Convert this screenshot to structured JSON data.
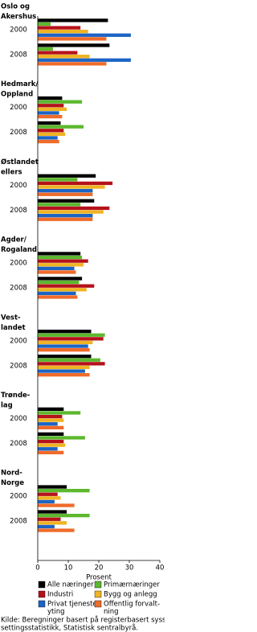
{
  "chart_data": {
    "type": "bar",
    "orientation": "horizontal",
    "groups": [
      {
        "label": [
          "Oslo og",
          "Akershus"
        ],
        "categories": [
          "2000",
          "2008"
        ]
      },
      {
        "label": [
          "Hedmark/",
          "Oppland"
        ],
        "categories": [
          "2000",
          "2008"
        ]
      },
      {
        "label": [
          "Østlandet",
          "ellers"
        ],
        "categories": [
          "2000",
          "2008"
        ]
      },
      {
        "label": [
          "Agder/",
          "Rogaland"
        ],
        "categories": [
          "2000",
          "2008"
        ]
      },
      {
        "label": [
          "Vest-",
          "landet"
        ],
        "categories": [
          "2000",
          "2008"
        ]
      },
      {
        "label": [
          "Trønde-",
          "lag"
        ],
        "categories": [
          "2000",
          "2008"
        ]
      },
      {
        "label": [
          "Nord-",
          "Norge"
        ],
        "categories": [
          "2000",
          "2008"
        ]
      }
    ],
    "series": [
      {
        "name": [
          "Alle næringer"
        ],
        "color": "#000000",
        "values": [
          23,
          23.5,
          8,
          7.5,
          19,
          18.5,
          14,
          14.5,
          17.5,
          17.5,
          8.5,
          8.5,
          9.5,
          9.5
        ]
      },
      {
        "name": [
          "Primærnæringer"
        ],
        "color": "#5cb82e",
        "values": [
          4.2,
          5,
          14.5,
          15,
          13,
          14,
          14.5,
          13.5,
          22,
          20.5,
          14,
          15.5,
          17,
          17
        ]
      },
      {
        "name": [
          "Industri"
        ],
        "color": "#b5121b",
        "values": [
          14,
          13,
          8.5,
          8.5,
          24.5,
          23.5,
          16.5,
          18.5,
          21.5,
          22,
          8,
          8.5,
          6.5,
          7.5
        ]
      },
      {
        "name": [
          "Bygg og anlegg"
        ],
        "color": "#f0b323",
        "values": [
          16.5,
          17,
          9.5,
          9,
          22,
          21.5,
          15,
          16,
          18,
          17,
          8.5,
          9,
          7.5,
          9.5
        ]
      },
      {
        "name": [
          "Privat tjeneste-",
          "yting"
        ],
        "color": "#1c64c4",
        "values": [
          30.5,
          30.5,
          7,
          6.5,
          18,
          18,
          12,
          12.5,
          16.5,
          15.5,
          6.5,
          6.5,
          5.5,
          5.5
        ]
      },
      {
        "name": [
          "Offentlig forvalt-",
          "ning"
        ],
        "color": "#ef6b2a",
        "values": [
          22.5,
          22.5,
          8,
          7,
          18,
          18,
          12.5,
          13,
          17,
          17,
          8.5,
          8.5,
          12,
          12
        ]
      }
    ],
    "xlim": [
      0,
      40
    ],
    "xticks": [
      0,
      10,
      20,
      30,
      40
    ],
    "xlabel": "Prosent",
    "source": [
      "Kilde: Beregninger basert på registerbasert syssel-",
      "settingsstatistikk, Statistisk sentralbyrå."
    ]
  }
}
